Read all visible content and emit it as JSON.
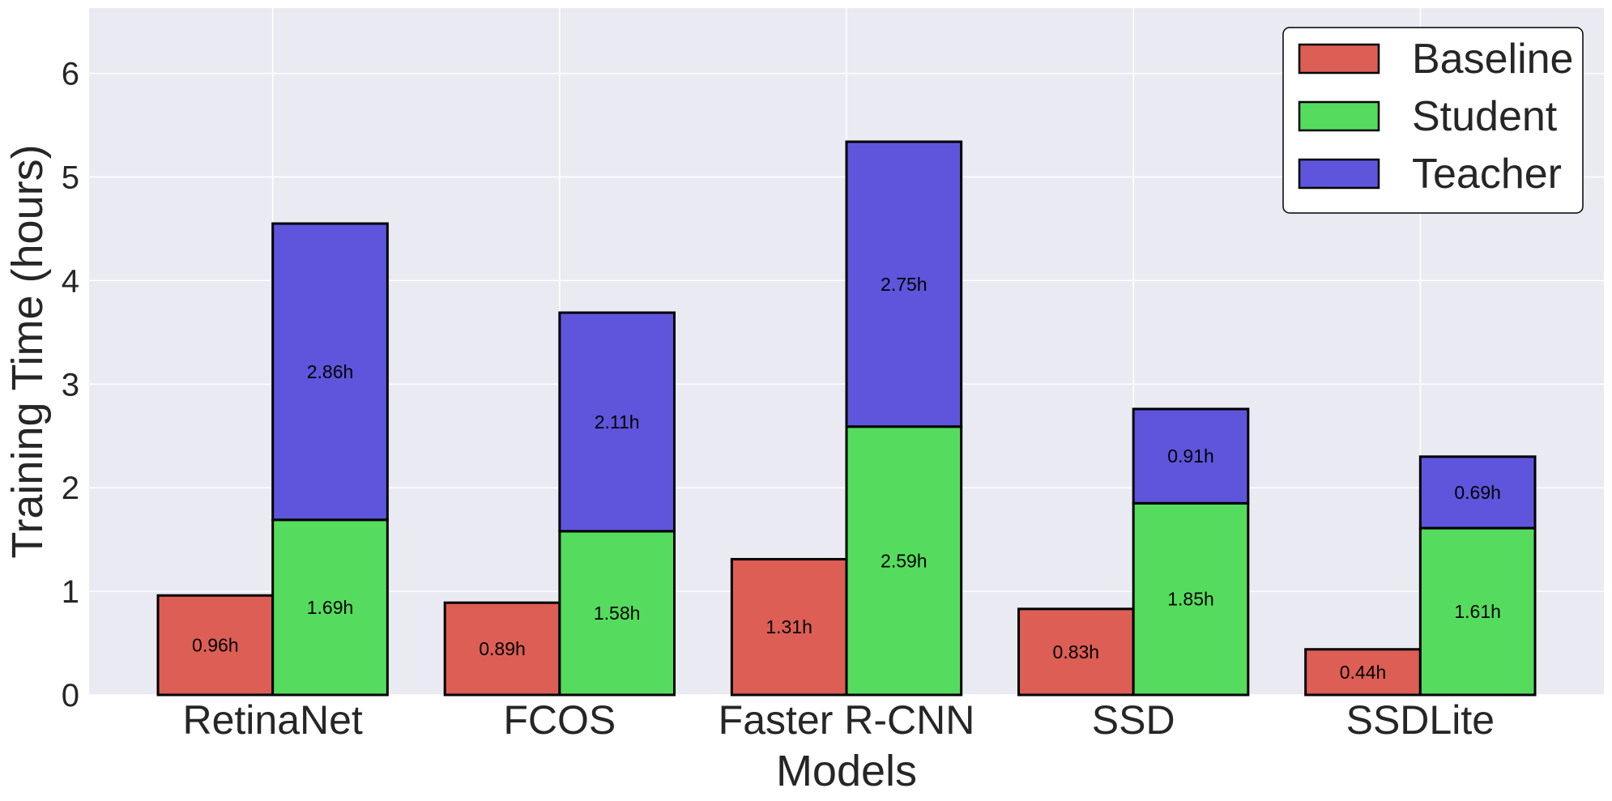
{
  "chart_data": {
    "type": "bar",
    "stacked": "Teacher stacked on Student",
    "title": "",
    "xlabel": "Models",
    "ylabel": "Training Time (hours)",
    "ylim": [
      0,
      6.63
    ],
    "yticks": [
      0,
      1,
      2,
      3,
      4,
      5,
      6
    ],
    "grid": true,
    "legend_position": "top-right",
    "categories": [
      "RetinaNet",
      "FCOS",
      "Faster R-CNN",
      "SSD",
      "SSDLite"
    ],
    "series": [
      {
        "name": "Baseline",
        "color": "#dc5e55",
        "values": [
          0.96,
          0.89,
          1.31,
          0.83,
          0.44
        ],
        "labels": [
          "0.96h",
          "0.89h",
          "1.31h",
          "0.83h",
          "0.44h"
        ]
      },
      {
        "name": "Student",
        "color": "#55dc5e",
        "values": [
          1.69,
          1.58,
          2.59,
          1.85,
          1.61
        ],
        "labels": [
          "1.69h",
          "1.58h",
          "2.59h",
          "1.85h",
          "1.61h"
        ]
      },
      {
        "name": "Teacher",
        "color": "#5e55dc",
        "values": [
          2.86,
          2.11,
          2.75,
          0.91,
          0.69
        ],
        "labels": [
          "2.86h",
          "2.11h",
          "2.75h",
          "0.91h",
          "0.69h"
        ]
      }
    ]
  }
}
